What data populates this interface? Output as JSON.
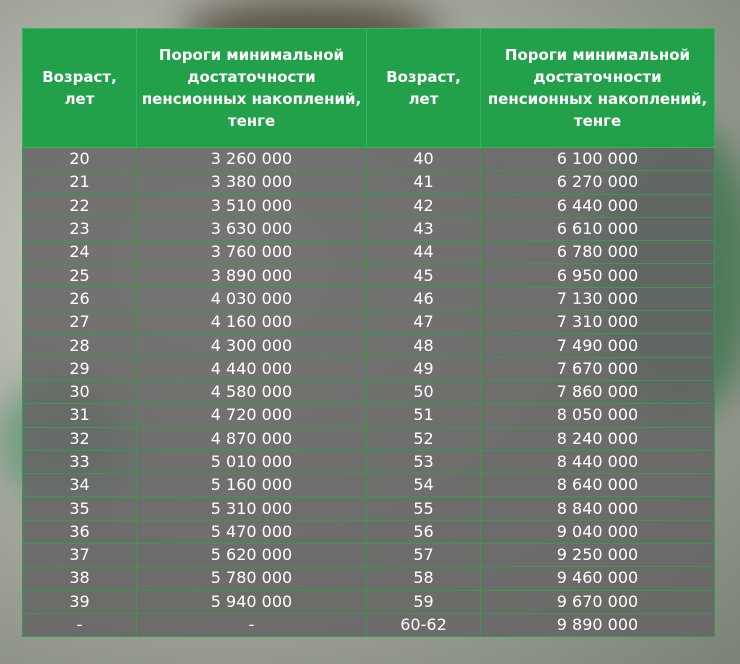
{
  "table": {
    "header": [
      "Возраст, лет",
      "Пороги минимальной достаточности пенсионных накоплений, тенге",
      "Возраст, лет",
      "Пороги минимальной достаточности пенсионных накоплений, тенге"
    ],
    "rows": [
      [
        "20",
        "3 260 000",
        "40",
        "6 100 000"
      ],
      [
        "21",
        "3 380 000",
        "41",
        "6 270 000"
      ],
      [
        "22",
        "3 510 000",
        "42",
        "6 440 000"
      ],
      [
        "23",
        "3 630 000",
        "43",
        "6 610 000"
      ],
      [
        "24",
        "3 760 000",
        "44",
        "6 780 000"
      ],
      [
        "25",
        "3 890 000",
        "45",
        "6 950 000"
      ],
      [
        "26",
        "4 030 000",
        "46",
        "7 130 000"
      ],
      [
        "27",
        "4 160 000",
        "47",
        "7 310 000"
      ],
      [
        "28",
        "4 300 000",
        "48",
        "7 490 000"
      ],
      [
        "29",
        "4 440 000",
        "49",
        "7 670 000"
      ],
      [
        "30",
        "4 580 000",
        "50",
        "7 860 000"
      ],
      [
        "31",
        "4 720 000",
        "51",
        "8 050 000"
      ],
      [
        "32",
        "4 870 000",
        "52",
        "8 240 000"
      ],
      [
        "33",
        "5 010 000",
        "53",
        "8 440 000"
      ],
      [
        "34",
        "5 160 000",
        "54",
        "8 640 000"
      ],
      [
        "35",
        "5 310 000",
        "55",
        "8 840 000"
      ],
      [
        "36",
        "5 470 000",
        "56",
        "9 040 000"
      ],
      [
        "37",
        "5 620 000",
        "57",
        "9 250 000"
      ],
      [
        "38",
        "5 780 000",
        "58",
        "9 460 000"
      ],
      [
        "39",
        "5 940 000",
        "59",
        "9 670 000"
      ],
      [
        "-",
        "-",
        "60-62",
        "9 890 000"
      ]
    ]
  }
}
